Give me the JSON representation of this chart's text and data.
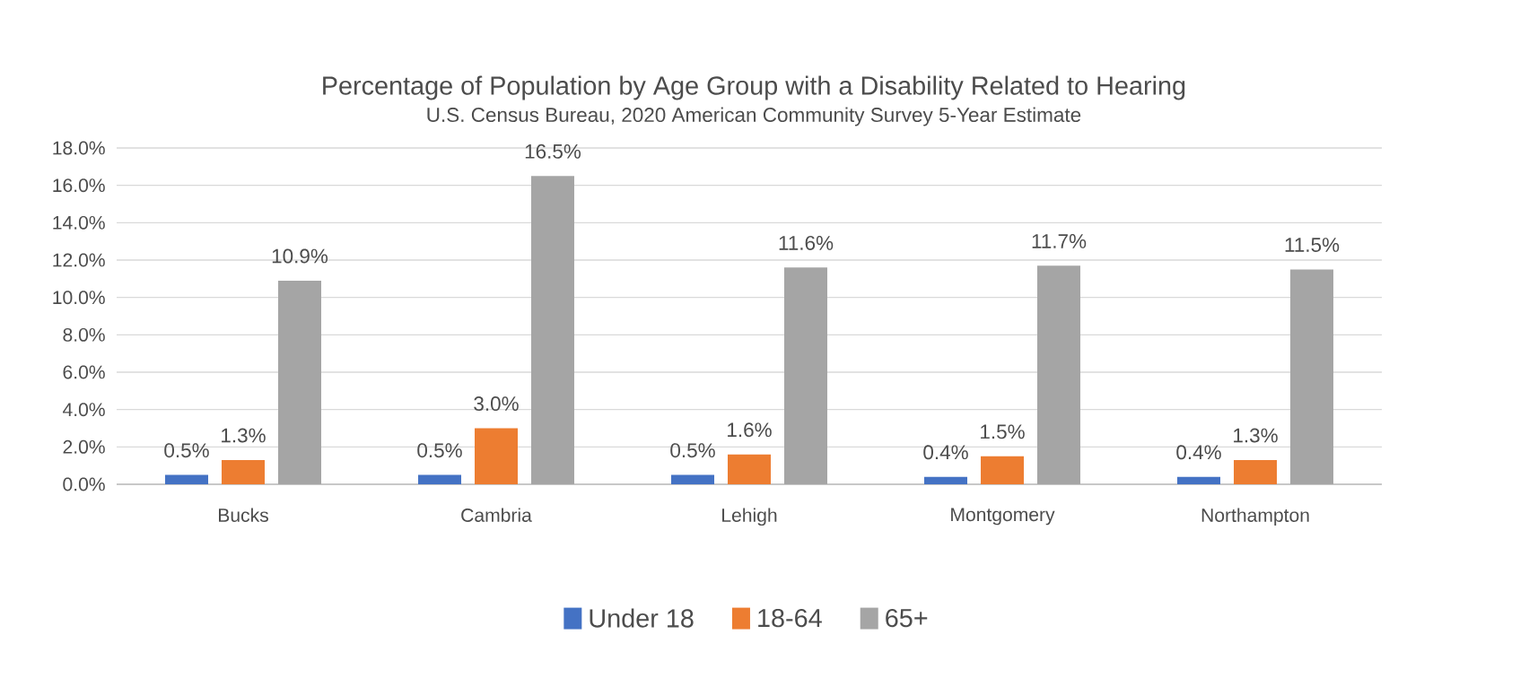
{
  "chart_data": {
    "type": "bar",
    "title": "Percentage of Population by Age Group with a Disability Related to Hearing",
    "subtitle": "U.S. Census Bureau, 2020 American Community Survey 5-Year Estimate",
    "categories": [
      "Bucks",
      "Cambria",
      "Lehigh",
      "Montgomery",
      "Northampton"
    ],
    "series": [
      {
        "name": "Under 18",
        "color": "#4472c4",
        "values": [
          0.5,
          0.5,
          0.5,
          0.4,
          0.4
        ],
        "value_labels": [
          "0.5%",
          "0.5%",
          "0.5%",
          "0.4%",
          "0.4%"
        ]
      },
      {
        "name": "18-64",
        "color": "#ed7d31",
        "values": [
          1.3,
          3.0,
          1.6,
          1.5,
          1.3
        ],
        "value_labels": [
          "1.3%",
          "3.0%",
          "1.6%",
          "1.5%",
          "1.3%"
        ]
      },
      {
        "name": "65+",
        "color": "#a5a5a5",
        "values": [
          10.9,
          16.5,
          11.6,
          11.7,
          11.5
        ],
        "value_labels": [
          "10.9%",
          "16.5%",
          "11.6%",
          "11.7%",
          "11.5%"
        ]
      }
    ],
    "ylim": [
      0,
      18
    ],
    "yticks": [
      {
        "value": 0,
        "label": "0.0%"
      },
      {
        "value": 2,
        "label": "2.0%"
      },
      {
        "value": 4,
        "label": "4.0%"
      },
      {
        "value": 6,
        "label": "6.0%"
      },
      {
        "value": 8,
        "label": "8.0%"
      },
      {
        "value": 10,
        "label": "10.0%"
      },
      {
        "value": 12,
        "label": "12.0%"
      },
      {
        "value": 14,
        "label": "14.0%"
      },
      {
        "value": 16,
        "label": "16.0%"
      },
      {
        "value": 18,
        "label": "18.0%"
      }
    ],
    "grid": "y",
    "legend": "bottom"
  }
}
